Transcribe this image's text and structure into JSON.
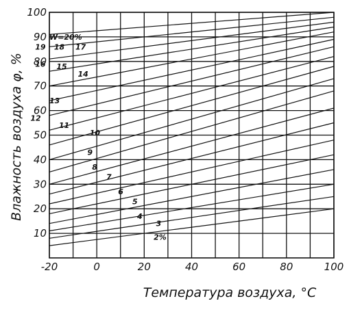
{
  "chart_data": {
    "type": "line",
    "xlabel": "Температура воздуха, °C",
    "ylabel": "Влажность воздуха φ, %",
    "xlim": [
      -20,
      100
    ],
    "ylim": [
      0,
      100
    ],
    "x_ticks": [
      "-20",
      "0",
      "20",
      "40",
      "60",
      "80",
      "100"
    ],
    "y_ticks": [
      "10",
      "20",
      "30",
      "40",
      "50",
      "60",
      "70",
      "80",
      "90",
      "100"
    ],
    "grid": true,
    "series": [
      {
        "name": "2%",
        "x": [
          -20,
          100
        ],
        "y": [
          5,
          20
        ]
      },
      {
        "name": "3",
        "x": [
          -20,
          100
        ],
        "y": [
          8,
          25
        ]
      },
      {
        "name": "4",
        "x": [
          -20,
          100
        ],
        "y": [
          11,
          30
        ]
      },
      {
        "name": "5",
        "x": [
          -20,
          100
        ],
        "y": [
          14,
          36
        ]
      },
      {
        "name": "6",
        "x": [
          -20,
          100
        ],
        "y": [
          18,
          42
        ]
      },
      {
        "name": "7",
        "x": [
          -20,
          100
        ],
        "y": [
          22,
          48
        ]
      },
      {
        "name": "8",
        "x": [
          -20,
          100
        ],
        "y": [
          26,
          55
        ]
      },
      {
        "name": "9",
        "x": [
          -20,
          100
        ],
        "y": [
          30,
          61
        ]
      },
      {
        "name": "10",
        "x": [
          -20,
          100
        ],
        "y": [
          35,
          68
        ]
      },
      {
        "name": "11",
        "x": [
          -20,
          100
        ],
        "y": [
          40,
          73
        ]
      },
      {
        "name": "12",
        "x": [
          -20,
          100
        ],
        "y": [
          46,
          78
        ]
      },
      {
        "name": "13",
        "x": [
          -20,
          100
        ],
        "y": [
          52,
          82
        ]
      },
      {
        "name": "14",
        "x": [
          -20,
          100
        ],
        "y": [
          58,
          86
        ]
      },
      {
        "name": "15",
        "x": [
          -20,
          100
        ],
        "y": [
          64,
          89
        ]
      },
      {
        "name": "16",
        "x": [
          -20,
          100
        ],
        "y": [
          70,
          92
        ]
      },
      {
        "name": "17",
        "x": [
          -20,
          100
        ],
        "y": [
          76,
          94
        ]
      },
      {
        "name": "18",
        "x": [
          -20,
          100
        ],
        "y": [
          81,
          96
        ]
      },
      {
        "name": "19",
        "x": [
          -20,
          100
        ],
        "y": [
          86,
          98
        ]
      },
      {
        "name": "W=20%",
        "x": [
          -20,
          100
        ],
        "y": [
          91,
          100
        ]
      }
    ],
    "curve_labels": [
      {
        "text": "2%",
        "x": 24,
        "y": 8.5
      },
      {
        "text": "3",
        "x": 25,
        "y": 14
      },
      {
        "text": "4",
        "x": 17,
        "y": 17
      },
      {
        "text": "5",
        "x": 15,
        "y": 23
      },
      {
        "text": "6",
        "x": 9,
        "y": 27
      },
      {
        "text": "7",
        "x": 4,
        "y": 33
      },
      {
        "text": "8",
        "x": -2,
        "y": 37
      },
      {
        "text": "9",
        "x": -4,
        "y": 43
      },
      {
        "text": "10",
        "x": -3,
        "y": 51
      },
      {
        "text": "11",
        "x": -16,
        "y": 54
      },
      {
        "text": "12",
        "x": -28,
        "y": 57
      },
      {
        "text": "13",
        "x": -20,
        "y": 64
      },
      {
        "text": "14",
        "x": -8,
        "y": 75
      },
      {
        "text": "15",
        "x": -17,
        "y": 78
      },
      {
        "text": "16",
        "x": -26,
        "y": 79
      },
      {
        "text": "17",
        "x": -9,
        "y": 86
      },
      {
        "text": "18",
        "x": -18,
        "y": 86
      },
      {
        "text": "19",
        "x": -26,
        "y": 86
      },
      {
        "text": "W=20%",
        "x": -20,
        "y": 90
      }
    ]
  }
}
